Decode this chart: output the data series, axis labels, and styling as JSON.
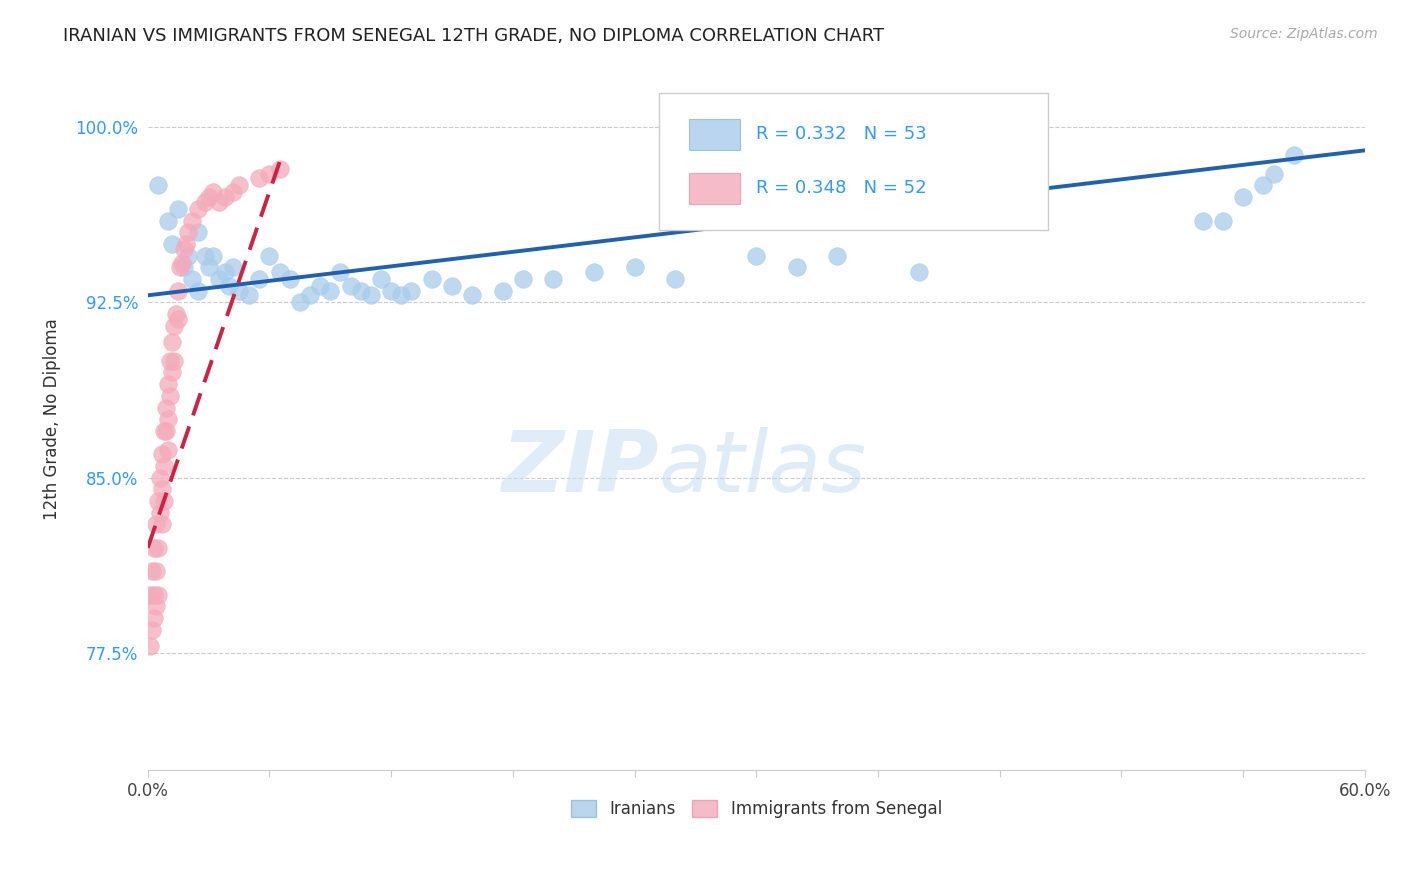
{
  "title": "IRANIAN VS IMMIGRANTS FROM SENEGAL 12TH GRADE, NO DIPLOMA CORRELATION CHART",
  "source": "Source: ZipAtlas.com",
  "ylabel": "12th Grade, No Diploma",
  "x_min": 0.0,
  "x_max": 0.6,
  "y_min": 0.725,
  "y_max": 1.025,
  "x_ticks": [
    0.0,
    0.06,
    0.12,
    0.18,
    0.24,
    0.3,
    0.36,
    0.42,
    0.48,
    0.54,
    0.6
  ],
  "y_ticks": [
    0.775,
    0.85,
    0.925,
    1.0
  ],
  "y_tick_labels": [
    "77.5%",
    "85.0%",
    "92.5%",
    "100.0%"
  ],
  "legend_label_blue": "Iranians",
  "legend_label_pink": "Immigrants from Senegal",
  "R_blue": 0.332,
  "N_blue": 53,
  "R_pink": 0.348,
  "N_pink": 52,
  "blue_color": "#A8CCEA",
  "pink_color": "#F4AABB",
  "line_blue_color": "#2060B0",
  "line_pink_color": "#CC2244",
  "watermark_zip": "ZIP",
  "watermark_atlas": "atlas",
  "iranians_x": [
    0.005,
    0.01,
    0.012,
    0.015,
    0.018,
    0.02,
    0.022,
    0.025,
    0.025,
    0.028,
    0.03,
    0.032,
    0.035,
    0.038,
    0.04,
    0.042,
    0.045,
    0.05,
    0.055,
    0.06,
    0.065,
    0.07,
    0.075,
    0.08,
    0.085,
    0.09,
    0.095,
    0.1,
    0.105,
    0.11,
    0.115,
    0.12,
    0.125,
    0.13,
    0.14,
    0.15,
    0.16,
    0.175,
    0.185,
    0.2,
    0.22,
    0.24,
    0.26,
    0.3,
    0.32,
    0.34,
    0.38,
    0.52,
    0.53,
    0.54,
    0.55,
    0.555,
    0.565
  ],
  "iranians_y": [
    0.975,
    0.96,
    0.95,
    0.965,
    0.94,
    0.945,
    0.935,
    0.93,
    0.955,
    0.945,
    0.94,
    0.945,
    0.935,
    0.938,
    0.932,
    0.94,
    0.93,
    0.928,
    0.935,
    0.945,
    0.938,
    0.935,
    0.925,
    0.928,
    0.932,
    0.93,
    0.938,
    0.932,
    0.93,
    0.928,
    0.935,
    0.93,
    0.928,
    0.93,
    0.935,
    0.932,
    0.928,
    0.93,
    0.935,
    0.935,
    0.938,
    0.94,
    0.935,
    0.945,
    0.94,
    0.945,
    0.938,
    0.96,
    0.96,
    0.97,
    0.975,
    0.98,
    0.988
  ],
  "senegal_x": [
    0.001,
    0.001,
    0.002,
    0.002,
    0.003,
    0.003,
    0.003,
    0.004,
    0.004,
    0.004,
    0.005,
    0.005,
    0.005,
    0.006,
    0.006,
    0.007,
    0.007,
    0.007,
    0.008,
    0.008,
    0.008,
    0.009,
    0.009,
    0.01,
    0.01,
    0.01,
    0.011,
    0.011,
    0.012,
    0.012,
    0.013,
    0.013,
    0.014,
    0.015,
    0.015,
    0.016,
    0.017,
    0.018,
    0.019,
    0.02,
    0.022,
    0.025,
    0.028,
    0.03,
    0.032,
    0.035,
    0.038,
    0.042,
    0.045,
    0.055,
    0.06,
    0.065
  ],
  "senegal_y": [
    0.8,
    0.778,
    0.81,
    0.785,
    0.82,
    0.8,
    0.79,
    0.83,
    0.81,
    0.795,
    0.84,
    0.82,
    0.8,
    0.85,
    0.835,
    0.86,
    0.845,
    0.83,
    0.87,
    0.855,
    0.84,
    0.88,
    0.87,
    0.89,
    0.875,
    0.862,
    0.9,
    0.885,
    0.908,
    0.895,
    0.915,
    0.9,
    0.92,
    0.93,
    0.918,
    0.94,
    0.942,
    0.948,
    0.95,
    0.955,
    0.96,
    0.965,
    0.968,
    0.97,
    0.972,
    0.968,
    0.97,
    0.972,
    0.975,
    0.978,
    0.98,
    0.982
  ],
  "blue_line_x0": 0.0,
  "blue_line_y0": 0.928,
  "blue_line_x1": 0.6,
  "blue_line_y1": 0.99,
  "pink_line_x0": 0.0,
  "pink_line_y0": 0.82,
  "pink_line_x1": 0.065,
  "pink_line_y1": 0.985
}
